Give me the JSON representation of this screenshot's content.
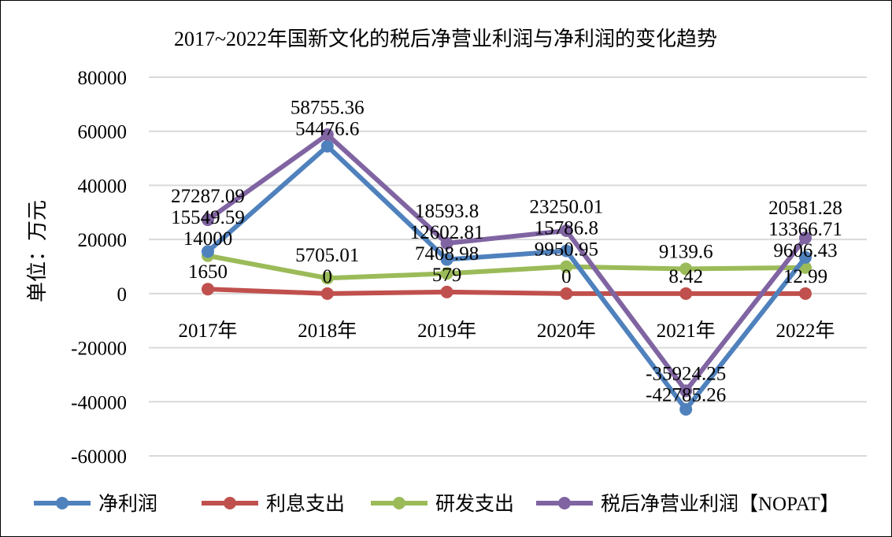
{
  "chart_data": {
    "type": "line",
    "title": "2017~2022年国新文化的税后净营业利润与净利润的变化趋势",
    "ylabel": "单位：万元",
    "xlabel": "",
    "categories": [
      "2017年",
      "2018年",
      "2019年",
      "2020年",
      "2021年",
      "2022年"
    ],
    "ylim": [
      -60000,
      80000
    ],
    "yticks": [
      80000,
      60000,
      40000,
      20000,
      0,
      -20000,
      -40000,
      -60000
    ],
    "grid": true,
    "legend_position": "bottom",
    "series": [
      {
        "name": "净利润",
        "color": "#4f81bd",
        "values": [
          15549.59,
          54476.6,
          12602.81,
          15786.8,
          -42785.26,
          13366.71
        ]
      },
      {
        "name": "利息支出",
        "color": "#c0504d",
        "values": [
          1650,
          0,
          579,
          0,
          8.42,
          12.99
        ]
      },
      {
        "name": "研发支出",
        "color": "#9bbb59",
        "values": [
          14000,
          5705.01,
          7408.98,
          9950.95,
          9139.6,
          9606.43
        ]
      },
      {
        "name": "税后净营业利润【NOPAT】",
        "color": "#8064a2",
        "values": [
          27287.09,
          58755.36,
          18593.8,
          23250.01,
          -35924.25,
          20581.28
        ]
      }
    ]
  }
}
